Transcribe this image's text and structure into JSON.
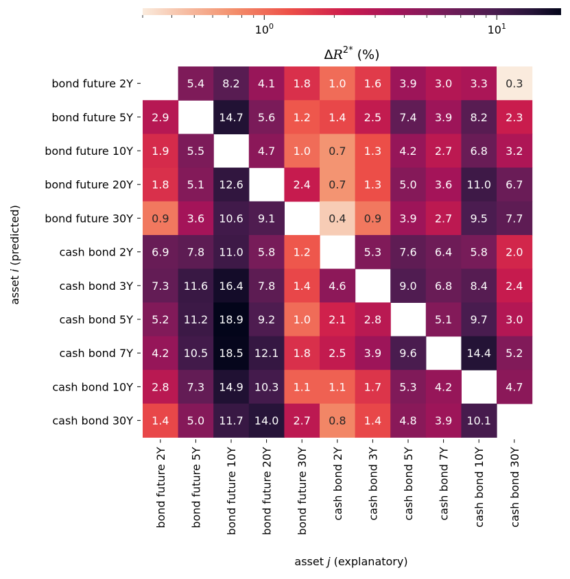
{
  "chart_data": {
    "type": "heatmap",
    "rows": [
      "bond future 2Y",
      "bond future 5Y",
      "bond future 10Y",
      "bond future 20Y",
      "bond future 30Y",
      "cash bond 2Y",
      "cash bond 3Y",
      "cash bond 5Y",
      "cash bond 7Y",
      "cash bond 10Y",
      "cash bond 30Y"
    ],
    "columns": [
      "bond future 2Y",
      "bond future 5Y",
      "bond future 10Y",
      "bond future 20Y",
      "bond future 30Y",
      "cash bond 2Y",
      "cash bond 3Y",
      "cash bond 5Y",
      "cash bond 7Y",
      "cash bond 10Y",
      "cash bond 30Y"
    ],
    "values": [
      [
        null,
        5.4,
        8.2,
        4.1,
        1.8,
        1.0,
        1.6,
        3.9,
        3.0,
        3.3,
        0.3
      ],
      [
        2.9,
        null,
        14.7,
        5.6,
        1.2,
        1.4,
        2.5,
        7.4,
        3.9,
        8.2,
        2.3
      ],
      [
        1.9,
        5.5,
        null,
        4.7,
        1.0,
        0.7,
        1.3,
        4.2,
        2.7,
        6.8,
        3.2
      ],
      [
        1.8,
        5.1,
        12.6,
        null,
        2.4,
        0.7,
        1.3,
        5.0,
        3.6,
        11.0,
        6.7
      ],
      [
        0.9,
        3.6,
        10.6,
        9.1,
        null,
        0.4,
        0.9,
        3.9,
        2.7,
        9.5,
        7.7
      ],
      [
        6.9,
        7.8,
        11.0,
        5.8,
        1.2,
        null,
        5.3,
        7.6,
        6.4,
        5.8,
        2.0
      ],
      [
        7.3,
        11.6,
        16.4,
        7.8,
        1.4,
        4.6,
        null,
        9.0,
        6.8,
        8.4,
        2.4
      ],
      [
        5.2,
        11.2,
        18.9,
        9.2,
        1.0,
        2.1,
        2.8,
        null,
        5.1,
        9.7,
        3.0
      ],
      [
        4.2,
        10.5,
        18.5,
        12.1,
        1.8,
        2.5,
        3.9,
        9.6,
        null,
        14.4,
        5.2
      ],
      [
        2.8,
        7.3,
        14.9,
        10.3,
        1.1,
        1.1,
        1.7,
        5.3,
        4.2,
        null,
        4.7
      ],
      [
        1.4,
        5.0,
        11.7,
        14.0,
        2.7,
        0.8,
        1.4,
        4.8,
        3.9,
        10.1,
        null
      ]
    ],
    "xlabel_prefix": "asset ",
    "xlabel_var": "j",
    "xlabel_suffix": " (explanatory)",
    "ylabel_prefix": "asset ",
    "ylabel_var": "i",
    "ylabel_suffix": " (predicted)",
    "colorbar": {
      "label_prefix": "Δ",
      "label_symbol": "R",
      "label_sup": "2*",
      "label_suffix": " (%)",
      "scale": "log",
      "range": [
        0.3,
        18.9
      ],
      "ticks": [
        {
          "value": 1,
          "base": "10",
          "exp": "0"
        },
        {
          "value": 10,
          "base": "10",
          "exp": "1"
        }
      ],
      "colormap": "rocket_r"
    },
    "cell_value_format": "one decimal"
  }
}
